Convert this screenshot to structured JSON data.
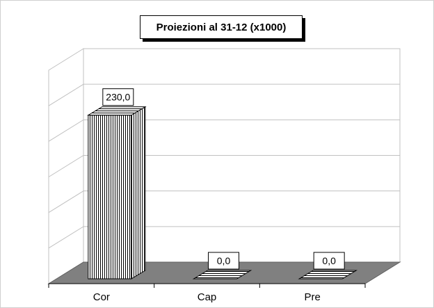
{
  "chart_data": {
    "type": "bar",
    "title": "Proiezioni al 31-12 (x1000)",
    "categories": [
      "Cor",
      "Cap",
      "Pre"
    ],
    "values": [
      230.0,
      0.0,
      0.0
    ],
    "data_labels": [
      "230,0",
      "0,0",
      "0,0"
    ],
    "ylim": [
      0,
      300
    ],
    "grid": true,
    "three_d": true,
    "legend": "none",
    "colors": {
      "floor": "#808080",
      "wall": "#ffffff",
      "gridline": "#c0c0c0",
      "bar_fill": "#ffffff",
      "bar_stroke": "#000000",
      "text": "#000000"
    }
  }
}
